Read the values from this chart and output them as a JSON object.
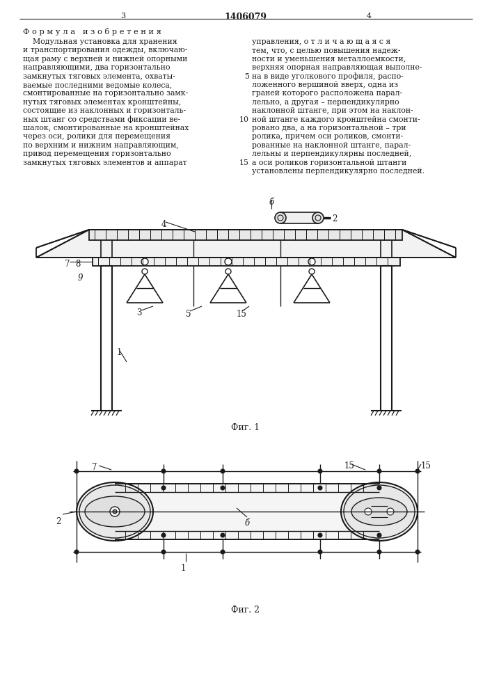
{
  "bg_color": "#ffffff",
  "line_color": "#1a1a1a",
  "text_color": "#1a1a1a",
  "page_num_left": "3",
  "page_num_center": "1406079",
  "page_num_right": "4",
  "formula_title": "Ф о р м у л а   и з о б р е т е н и я",
  "left_col": [
    "    Модульная установка для хранения",
    "и транспортирования одежды, включаю-",
    "щая раму с верхней и нижней опорными",
    "направляющими, два горизонтально",
    "замкнутых тяговых элемента, охваты-",
    "ваемые последними ведомые колеса,",
    "смонтированные на горизонтально замк-",
    "нутых тяговых элементах кронштейны,",
    "состоящие из наклонных и горизонталь-",
    "ных штанг со средствами фиксации ве-",
    "шалок, смонтированные на кронштейнах",
    "через оси, ролики для перемещения",
    "по верхним и нижним направляющим,",
    "привод перемещения горизонтально",
    "замкнутых тяговых элементов и аппарат"
  ],
  "right_col": [
    "управления, о т л и ч а ю щ а я с я",
    "тем, что, с целью повышения надеж-",
    "ности и уменьшения металлоемкости,",
    "верхняя опорная направляющая выполне-",
    "на в виде уголкового профиля, распо-",
    "ложенного вершиной вверх, одна из",
    "граней которого расположена парал-",
    "лельно, а другая – перпендикулярно",
    "наклонной штанге, при этом на наклон-",
    "ной штанге каждого кронштейна смонти-",
    "ровано два, а на горизонтальной – три",
    "ролика, причем оси роликов, смонти-",
    "рованные на наклонной штанге, парал-",
    "лельны и перпендикулярны последней,",
    "а оси роликов горизонтальной штанги",
    "установлены перпендикулярно последней."
  ],
  "line_numbers": {
    "5": 5,
    "10": 9,
    "15": 13
  },
  "fig1_label": "Фиг. 1",
  "fig2_label": "Фиг. 2"
}
